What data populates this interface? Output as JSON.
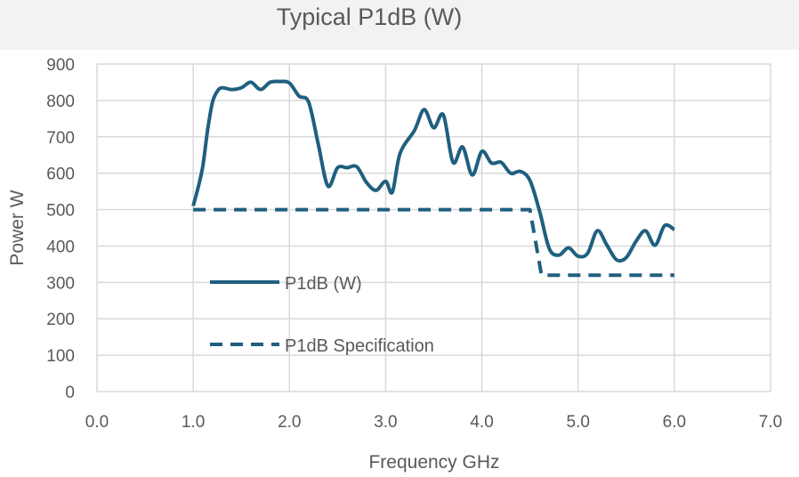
{
  "chart_data": {
    "type": "line",
    "title": "Typical P1dB (W)",
    "xlabel": "Frequency GHz",
    "ylabel": "Power W",
    "xlim": [
      0,
      7
    ],
    "ylim": [
      0,
      900
    ],
    "x_ticks": [
      "0.0",
      "1.0",
      "2.0",
      "3.0",
      "4.0",
      "5.0",
      "6.0",
      "7.0"
    ],
    "y_ticks": [
      "0",
      "100",
      "200",
      "300",
      "400",
      "500",
      "600",
      "700",
      "800",
      "900"
    ],
    "grid": true,
    "legend_position": "inside-left",
    "series": [
      {
        "name": "P1dB (W)",
        "style": "solid",
        "color": "#1f5f7f",
        "points": [
          [
            1.0,
            510
          ],
          [
            1.05,
            560
          ],
          [
            1.1,
            620
          ],
          [
            1.15,
            720
          ],
          [
            1.2,
            795
          ],
          [
            1.25,
            825
          ],
          [
            1.3,
            835
          ],
          [
            1.4,
            830
          ],
          [
            1.5,
            835
          ],
          [
            1.6,
            850
          ],
          [
            1.7,
            830
          ],
          [
            1.8,
            850
          ],
          [
            1.9,
            852
          ],
          [
            2.0,
            848
          ],
          [
            2.1,
            812
          ],
          [
            2.2,
            795
          ],
          [
            2.3,
            680
          ],
          [
            2.4,
            565
          ],
          [
            2.5,
            615
          ],
          [
            2.6,
            615
          ],
          [
            2.7,
            618
          ],
          [
            2.8,
            575
          ],
          [
            2.9,
            553
          ],
          [
            3.0,
            578
          ],
          [
            3.07,
            548
          ],
          [
            3.15,
            655
          ],
          [
            3.3,
            718
          ],
          [
            3.4,
            775
          ],
          [
            3.5,
            725
          ],
          [
            3.6,
            760
          ],
          [
            3.7,
            630
          ],
          [
            3.8,
            672
          ],
          [
            3.9,
            595
          ],
          [
            4.0,
            660
          ],
          [
            4.1,
            628
          ],
          [
            4.2,
            630
          ],
          [
            4.3,
            600
          ],
          [
            4.4,
            605
          ],
          [
            4.5,
            580
          ],
          [
            4.6,
            495
          ],
          [
            4.7,
            393
          ],
          [
            4.8,
            375
          ],
          [
            4.9,
            395
          ],
          [
            5.0,
            372
          ],
          [
            5.1,
            380
          ],
          [
            5.2,
            442
          ],
          [
            5.3,
            402
          ],
          [
            5.4,
            362
          ],
          [
            5.5,
            368
          ],
          [
            5.6,
            412
          ],
          [
            5.7,
            442
          ],
          [
            5.8,
            402
          ],
          [
            5.9,
            456
          ],
          [
            6.0,
            445
          ]
        ]
      },
      {
        "name": "P1dB Specification",
        "style": "dashed",
        "color": "#1f5f7f",
        "points": [
          [
            1.0,
            500
          ],
          [
            4.5,
            500
          ],
          [
            4.62,
            320
          ],
          [
            6.0,
            320
          ]
        ]
      }
    ]
  }
}
